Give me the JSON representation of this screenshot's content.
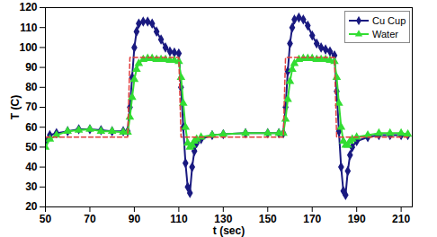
{
  "chart_data": {
    "type": "line",
    "xlabel": "t (sec)",
    "ylabel": "T (C)",
    "x": [
      50,
      52,
      55,
      60,
      65,
      70,
      75,
      80,
      85,
      87,
      88,
      89,
      90,
      91,
      92,
      94,
      96,
      98,
      100,
      102,
      104,
      106,
      108,
      110,
      111,
      112,
      113,
      114,
      115,
      116,
      117,
      118,
      120,
      125,
      130,
      140,
      150,
      155,
      157,
      158,
      159,
      160,
      161,
      162,
      164,
      166,
      168,
      170,
      172,
      174,
      176,
      178,
      180,
      181,
      182,
      183,
      184,
      185,
      186,
      187,
      188,
      190,
      195,
      200,
      205,
      210,
      213
    ],
    "series": [
      {
        "name": "Cu Cup",
        "color": "#1a1a80",
        "marker": "diamond",
        "line_style": "solid",
        "values": [
          53,
          56,
          57,
          58,
          59,
          59,
          58.5,
          58,
          58,
          58,
          70,
          85,
          100,
          108,
          112,
          113,
          113,
          112,
          108,
          104,
          100,
          98,
          97.5,
          97,
          80,
          60,
          42,
          30,
          27,
          40,
          48,
          52,
          54,
          56,
          56.5,
          57,
          57,
          57,
          57,
          70,
          88,
          102,
          110,
          114,
          115,
          114,
          111,
          106,
          102,
          100,
          99,
          98,
          96,
          78,
          58,
          40,
          28,
          26,
          38,
          46,
          50,
          53,
          55,
          56,
          56,
          56,
          56
        ]
      },
      {
        "name": "Water",
        "color": "#33dd33",
        "marker": "triangle",
        "line_style": "solid",
        "values": [
          50,
          54,
          56,
          58,
          58.5,
          59,
          58,
          58,
          57.5,
          57.5,
          65,
          75,
          84,
          89,
          92,
          94,
          94.5,
          94.5,
          94,
          94,
          94,
          93.5,
          93.5,
          93,
          85,
          72,
          60,
          52,
          50,
          51,
          53,
          54,
          55,
          56,
          56.5,
          57,
          57,
          57,
          57,
          64,
          74,
          83,
          89,
          92,
          94,
          94.5,
          94.5,
          94.5,
          94,
          94,
          94,
          93.5,
          93,
          85,
          72,
          60,
          53,
          51,
          51,
          53,
          54,
          55,
          56,
          57,
          57,
          57,
          56.5
        ]
      },
      {
        "color": "#e03c3c",
        "marker": "none",
        "line_style": "dashed",
        "values": [
          55,
          55,
          55,
          55,
          55,
          55,
          55,
          55,
          55,
          55,
          95,
          95,
          95,
          95,
          95,
          95,
          95,
          95,
          95,
          95,
          95,
          95,
          95,
          95,
          55,
          55,
          55,
          55,
          55,
          55,
          55,
          55,
          55,
          55,
          55,
          55,
          55,
          55,
          55,
          95,
          95,
          95,
          95,
          95,
          95,
          95,
          95,
          95,
          95,
          95,
          95,
          95,
          95,
          55,
          55,
          55,
          55,
          55,
          55,
          55,
          55,
          55,
          55,
          55,
          55,
          55,
          55
        ]
      }
    ],
    "xlim": [
      50,
      215
    ],
    "xticks": [
      50,
      70,
      90,
      110,
      130,
      150,
      170,
      190,
      210
    ],
    "ylim": [
      20,
      120
    ],
    "yticks": [
      20,
      30,
      40,
      50,
      60,
      70,
      80,
      90,
      100,
      110,
      120
    ],
    "grid": false,
    "legend": "upper right"
  }
}
